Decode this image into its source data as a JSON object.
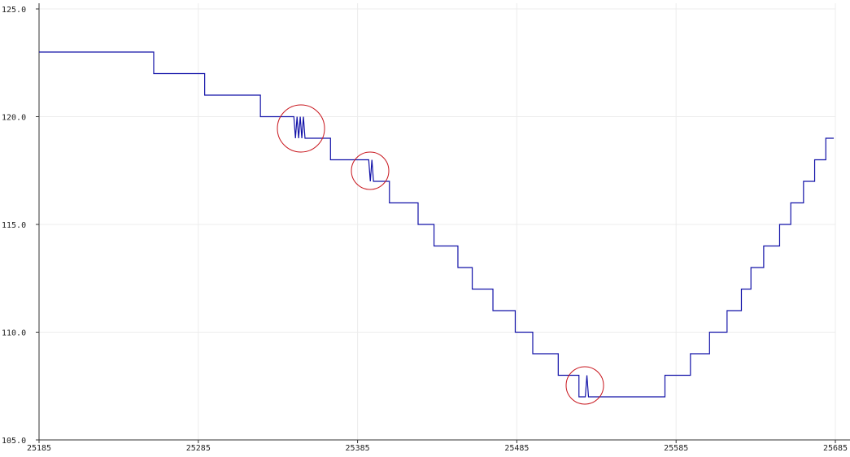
{
  "chart_data": {
    "type": "line",
    "x": [
      25185,
      25257,
      25257,
      25289,
      25289,
      25324,
      25324,
      25345,
      25346,
      25347,
      25348,
      25349,
      25350,
      25351,
      25352,
      25368,
      25368,
      25392,
      25393,
      25394,
      25395,
      25405,
      25405,
      25423,
      25423,
      25433,
      25433,
      25448,
      25448,
      25457,
      25457,
      25470,
      25470,
      25484,
      25484,
      25495,
      25495,
      25511,
      25511,
      25524,
      25524,
      25528,
      25529,
      25530,
      25578,
      25578,
      25594,
      25594,
      25606,
      25606,
      25617,
      25617,
      25626,
      25626,
      25632,
      25632,
      25640,
      25640,
      25650,
      25650,
      25657,
      25657,
      25665,
      25665,
      25672,
      25672,
      25679,
      25679,
      25684
    ],
    "values": [
      123,
      123,
      122,
      122,
      121,
      121,
      120,
      120,
      119,
      120,
      119,
      120,
      119,
      120,
      119,
      119,
      118,
      118,
      117,
      118,
      117,
      117,
      116,
      116,
      115,
      115,
      114,
      114,
      113,
      113,
      112,
      112,
      111,
      111,
      110,
      110,
      109,
      109,
      108,
      108,
      107,
      107,
      108,
      107,
      107,
      108,
      108,
      109,
      109,
      110,
      110,
      111,
      111,
      112,
      112,
      113,
      113,
      114,
      114,
      115,
      115,
      116,
      116,
      117,
      117,
      118,
      118,
      119,
      119
    ],
    "color": "#1212a8",
    "xlim": [
      25185,
      25685
    ],
    "xticks": [
      25185,
      25285,
      25385,
      25485,
      25585,
      25685
    ],
    "ylim": [
      105,
      125
    ],
    "yticks": [
      {
        "value": 105,
        "label": "105.0"
      },
      {
        "value": 110,
        "label": "110.0"
      },
      {
        "value": 115,
        "label": "115.0"
      },
      {
        "value": 120,
        "label": "120.0"
      },
      {
        "value": 125,
        "label": "125.0"
      }
    ],
    "grid": true
  }
}
